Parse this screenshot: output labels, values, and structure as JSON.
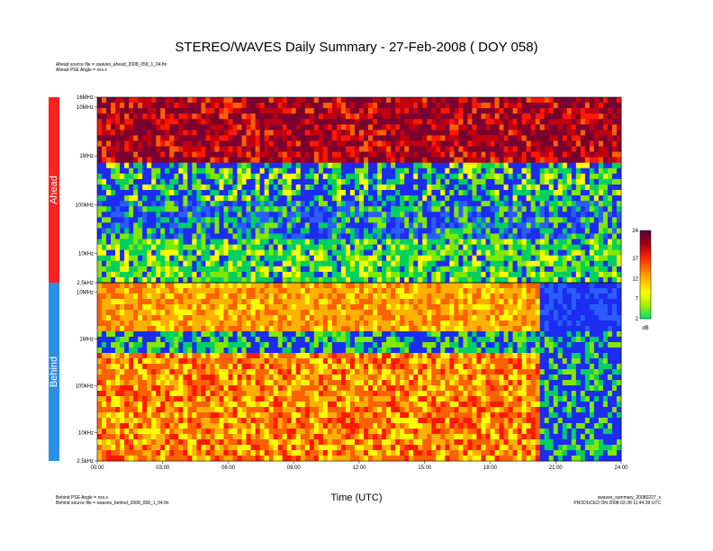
{
  "page": {
    "title": "STEREO/WAVES Daily Summary - 27-Feb-2008 ( DOY 058)",
    "ahead_info": [
      "Ahead source file = swaves_ahead_2008_058_1_04.fin",
      "Ahead PSE Angle = xxx.x"
    ],
    "behind_info": [
      "Behind PSE Angle = xxx.x",
      "Behind source file = swaves_behind_2008_058_1_04.fin"
    ],
    "right_info": [
      "swaves_summary_20080227_x",
      "PRODUCED ON 2008-02-28 11:44:39 UTC"
    ],
    "xlabel": "Time (UTC)"
  },
  "chart_data": {
    "type": "heatmap",
    "title": "STEREO/WAVES Daily Summary - 27-Feb-2008 ( DOY 058)",
    "xlabel": "Time (UTC)",
    "x_ticks": [
      "00:00",
      "03:00",
      "06:00",
      "09:00",
      "12:00",
      "15:00",
      "18:00",
      "21:00",
      "24:00"
    ],
    "xlim": [
      0,
      24
    ],
    "y_scale": "log",
    "panels": [
      {
        "name": "Ahead",
        "color": "#ff2020",
        "y_ticks": [
          "2.5kHz",
          "10kHz",
          "100kHz",
          "1MHz",
          "10MHz",
          "16MHz"
        ],
        "ylim_top": "16MHz",
        "ylim_bottom": "2.5kHz"
      },
      {
        "name": "Behind",
        "color": "#2a8fe6",
        "y_ticks": [
          "10MHz",
          "1MHz",
          "100kHz",
          "10kHz",
          "2.5kHz"
        ],
        "ylim_top": "16MHz",
        "ylim_bottom": "2.5kHz"
      }
    ],
    "colorbar": {
      "label": "dB",
      "ticks": [
        24,
        17,
        12,
        7,
        2
      ],
      "range": [
        2,
        24
      ]
    }
  }
}
